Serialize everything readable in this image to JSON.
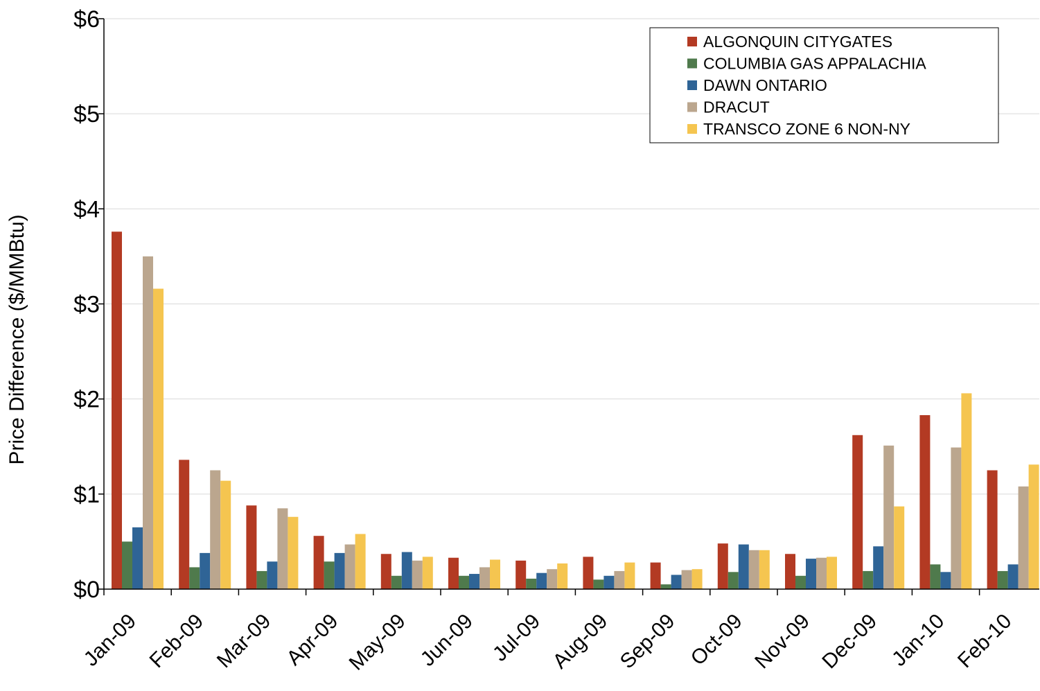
{
  "chart_data": {
    "type": "bar",
    "ylabel": "Price Difference  ($/MMBtu)",
    "ylim": [
      0,
      6
    ],
    "yticks": [
      0,
      1,
      2,
      3,
      4,
      5,
      6
    ],
    "ytick_labels": [
      "$0",
      "$1",
      "$2",
      "$3",
      "$4",
      "$5",
      "$6"
    ],
    "grid": true,
    "legend_position": "top-right",
    "categories": [
      "Jan-09",
      "Feb-09",
      "Mar-09",
      "Apr-09",
      "May-09",
      "Jun-09",
      "Jul-09",
      "Aug-09",
      "Sep-09",
      "Oct-09",
      "Nov-09",
      "Dec-09",
      "Jan-10",
      "Feb-10"
    ],
    "series": [
      {
        "name": "ALGONQUIN CITYGATES",
        "color": "#B33A23",
        "values": [
          3.76,
          1.36,
          0.88,
          0.56,
          0.37,
          0.33,
          0.3,
          0.34,
          0.28,
          0.48,
          0.37,
          1.62,
          1.83,
          1.25
        ]
      },
      {
        "name": "COLUMBIA GAS APPALACHIA",
        "color": "#4F7A4C",
        "values": [
          0.5,
          0.23,
          0.19,
          0.29,
          0.14,
          0.14,
          0.11,
          0.1,
          0.05,
          0.18,
          0.14,
          0.19,
          0.26,
          0.19
        ]
      },
      {
        "name": "DAWN ONTARIO",
        "color": "#2F6496",
        "values": [
          0.65,
          0.38,
          0.29,
          0.38,
          0.39,
          0.16,
          0.17,
          0.14,
          0.15,
          0.47,
          0.32,
          0.45,
          0.18,
          0.26
        ]
      },
      {
        "name": "DRACUT",
        "color": "#BBA68E",
        "values": [
          3.5,
          1.25,
          0.85,
          0.47,
          0.3,
          0.23,
          0.21,
          0.19,
          0.2,
          0.41,
          0.33,
          1.51,
          1.49,
          1.08
        ]
      },
      {
        "name": "TRANSCO ZONE 6 NON-NY",
        "color": "#F5C550",
        "values": [
          3.16,
          1.14,
          0.76,
          0.58,
          0.34,
          0.31,
          0.27,
          0.28,
          0.21,
          0.41,
          0.34,
          0.87,
          2.06,
          1.31
        ]
      }
    ]
  }
}
